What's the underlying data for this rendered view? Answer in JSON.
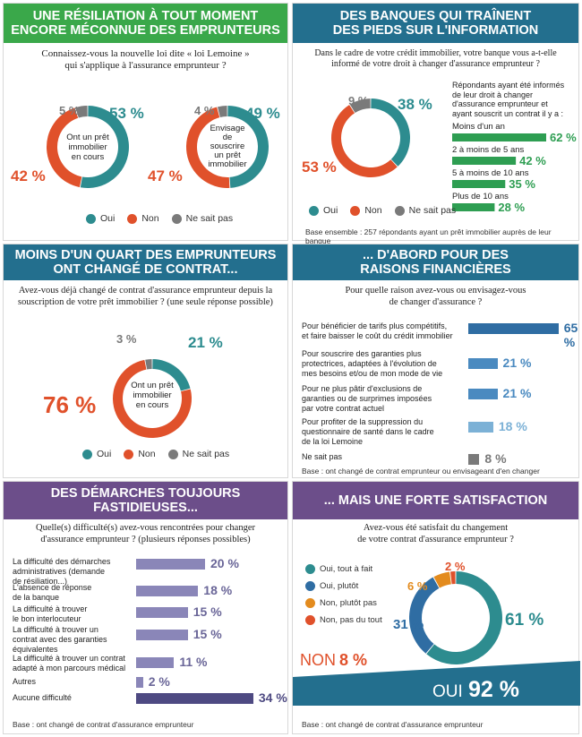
{
  "colors": {
    "teal": "#2d8c8f",
    "red": "#e0512b",
    "grey": "#7a7a7a",
    "green": "#2e9e52",
    "blue_dark": "#2f6da3",
    "blue_mid": "#4a8ac0",
    "blue_light": "#7cb1d6",
    "purple": "#4e4a82",
    "orange": "#e38b1e",
    "header_green": "#3aa84a",
    "header_teal": "#236f8e",
    "header_purple": "#6c4e8a"
  },
  "p1": {
    "title_lines": [
      "UNE RÉSILIATION À TOUT MOMENT",
      "ENCORE MÉCONNUE DES EMPRUNTEURS"
    ],
    "question_lines": [
      "Connaissez-vous la nouvelle loi dite « loi Lemoine »",
      "qui s'applique à l'assurance emprunteur ?"
    ],
    "donut1_center": [
      "Ont un prêt",
      "immobilier",
      "en cours"
    ],
    "donut2_center": [
      "Envisage",
      "de",
      "souscrire",
      "un prêt",
      "immobilier"
    ],
    "legend": [
      "Oui",
      "Non",
      "Ne sait pas"
    ]
  },
  "p2": {
    "title_lines": [
      "DES BANQUES QUI TRAÎNENT",
      "DES PIEDS SUR L'INFORMATION"
    ],
    "question_lines": [
      "Dans le cadre de votre crédit immobilier, votre banque vous a-t-elle",
      "informé de votre droit à changer d'assurance emprunteur ?"
    ],
    "side_lines": [
      "Répondants ayant été informés",
      "de leur droit à changer",
      "d'assurance emprunteur et",
      "ayant souscrit un contrat il y a :"
    ],
    "legend": [
      "Oui",
      "Non",
      "Ne sait pas"
    ],
    "base": "Base ensemble : 257 répondants ayant un prêt immobilier auprès de leur banque"
  },
  "p3": {
    "title_lines": [
      "MOINS D'UN QUART DES EMPRUNTEURS",
      "ONT CHANGÉ DE CONTRAT..."
    ],
    "question_lines": [
      "Avez-vous déjà changé de contrat d'assurance emprunteur depuis la",
      "souscription de votre prêt immobilier ? (une seule réponse possible)"
    ],
    "center": [
      "Ont un prêt",
      "immobilier",
      "en cours"
    ],
    "legend": [
      "Oui",
      "Non",
      "Ne sait pas"
    ]
  },
  "p4": {
    "title_lines": [
      "... D'ABORD POUR DES",
      "RAISONS FINANCIÈRES"
    ],
    "question_lines": [
      "Pour quelle raison avez-vous ou envisagez-vous",
      "de changer d'assurance ?"
    ],
    "base": "Base : ont changé de contrat emprunteur ou envisageant d'en changer"
  },
  "p5": {
    "title_lines": [
      "DES DÉMARCHES TOUJOURS",
      "FASTIDIEUSES..."
    ],
    "question_lines": [
      "Quelle(s) difficulté(s) avez-vous rencontrées pour changer",
      "d'assurance emprunteur ? (plusieurs réponses possibles)"
    ],
    "base": "Base : ont changé de contrat d'assurance emprunteur"
  },
  "p6": {
    "title_lines": [
      "... MAIS UNE FORTE SATISFACTION"
    ],
    "question_lines": [
      "Avez-vous été satisfait du changement",
      "de votre contrat d'assurance emprunteur ?"
    ],
    "non_label": "NON",
    "non_value": "8 %",
    "oui_label": "OUI",
    "oui_value": "92 %",
    "base": "Base : ont changé de contrat d'assurance emprunteur"
  },
  "chart_data": [
    {
      "type": "pie",
      "title": "Connaissez-vous la nouvelle loi dite « loi Lemoine » qui s'applique à l'assurance emprunteur ? — Ont un prêt immobilier en cours",
      "categories": [
        "Oui",
        "Non",
        "Ne sait pas"
      ],
      "values": [
        53,
        42,
        5
      ],
      "labels": [
        "53 %",
        "42 %",
        "5 %"
      ]
    },
    {
      "type": "pie",
      "title": "Connaissez-vous la nouvelle loi dite « loi Lemoine » qui s'applique à l'assurance emprunteur ? — Envisage de souscrire un prêt immobilier",
      "categories": [
        "Oui",
        "Non",
        "Ne sait pas"
      ],
      "values": [
        49,
        47,
        4
      ],
      "labels": [
        "49 %",
        "47 %",
        "4 %"
      ]
    },
    {
      "type": "pie",
      "title": "Dans le cadre de votre crédit immobilier, votre banque vous a-t-elle informé de votre droit à changer d'assurance emprunteur ?",
      "categories": [
        "Oui",
        "Non",
        "Ne sait pas"
      ],
      "values": [
        38,
        53,
        9
      ],
      "labels": [
        "38 %",
        "53 %",
        "9 %"
      ]
    },
    {
      "type": "bar",
      "categories": [
        "Moins d'un an",
        "2 à moins de 5 ans",
        "5 à moins de 10 ans",
        "Plus de 10 ans"
      ],
      "values": [
        62,
        42,
        35,
        28
      ],
      "labels": [
        "62 %",
        "42 %",
        "35 %",
        "28 %"
      ]
    },
    {
      "type": "pie",
      "title": "Avez-vous déjà changé de contrat d'assurance emprunteur depuis la souscription de votre prêt immobilier ? (une seule réponse possible)",
      "categories": [
        "Oui",
        "Non",
        "Ne sait pas"
      ],
      "values": [
        21,
        76,
        3
      ],
      "labels": [
        "21 %",
        "76 %",
        "3 %"
      ]
    },
    {
      "type": "bar",
      "title": "Pour quelle raison avez-vous ou envisagez-vous de changer d'assurance ?",
      "categories": [
        "Pour bénéficier de tarifs plus compétitifs, et faire baisser le coût du crédit immobilier",
        "Pour souscrire des garanties plus protectrices, adaptées à l'évolution de mes besoins et/ou de mon mode de vie",
        "Pour ne plus pâtir d'exclusions de garanties ou de surprimes imposées par votre contrat actuel",
        "Pour profiter de la suppression du questionnaire de santé dans le cadre de la loi Lemoine",
        "Ne sait pas"
      ],
      "label_lines": [
        [
          "Pour bénéficier de tarifs plus compétitifs,",
          "et faire baisser le coût du crédit immobilier"
        ],
        [
          "Pour souscrire des garanties plus",
          "protectrices, adaptées à l'évolution de",
          "mes besoins et/ou de mon mode de vie"
        ],
        [
          "Pour ne plus pâtir d'exclusions de",
          "garanties ou de surprimes imposées",
          "par votre contrat actuel"
        ],
        [
          "Pour profiter de la suppression du",
          "questionnaire de santé dans le cadre",
          "de la loi Lemoine"
        ],
        [
          "Ne sait pas"
        ]
      ],
      "values": [
        65,
        21,
        21,
        18,
        8
      ],
      "labels": [
        "65 %",
        "21 %",
        "21 %",
        "18 %",
        "8 %"
      ]
    },
    {
      "type": "bar",
      "title": "Quelle(s) difficulté(s) avez-vous rencontrées pour changer d'assurance emprunteur ? (plusieurs réponses possibles)",
      "categories": [
        "La difficulté des démarches administratives (demande de résiliation...)",
        "L'absence de réponse de la banque",
        "La difficulté à trouver le bon interlocuteur",
        "La difficulté à trouver un contrat avec des garanties équivalentes",
        "La difficulté à trouver un contrat adapté à mon parcours médical",
        "Autres",
        "Aucune difficulté"
      ],
      "label_lines": [
        [
          "La difficulté des démarches",
          "administratives (demande",
          "de résiliation...)"
        ],
        [
          "L'absence de réponse",
          "de la banque"
        ],
        [
          "La difficulté à trouver",
          "le bon interlocuteur"
        ],
        [
          "La difficulté à trouver un",
          "contrat avec des garanties",
          "équivalentes"
        ],
        [
          "La difficulté à trouver un contrat",
          "adapté à mon parcours médical"
        ],
        [
          "Autres"
        ],
        [
          "Aucune difficulté"
        ]
      ],
      "values": [
        20,
        18,
        15,
        15,
        11,
        2,
        34
      ],
      "labels": [
        "20 %",
        "18 %",
        "15 %",
        "15 %",
        "11 %",
        "2 %",
        "34 %"
      ]
    },
    {
      "type": "pie",
      "title": "Avez-vous été satisfait du changement de votre contrat d'assurance emprunteur ?",
      "categories": [
        "Oui, tout à fait",
        "Oui, plutôt",
        "Non, plutôt pas",
        "Non, pas du tout"
      ],
      "values": [
        61,
        31,
        6,
        2
      ],
      "labels": [
        "61 %",
        "31 %",
        "6 %",
        "2 %"
      ]
    }
  ]
}
